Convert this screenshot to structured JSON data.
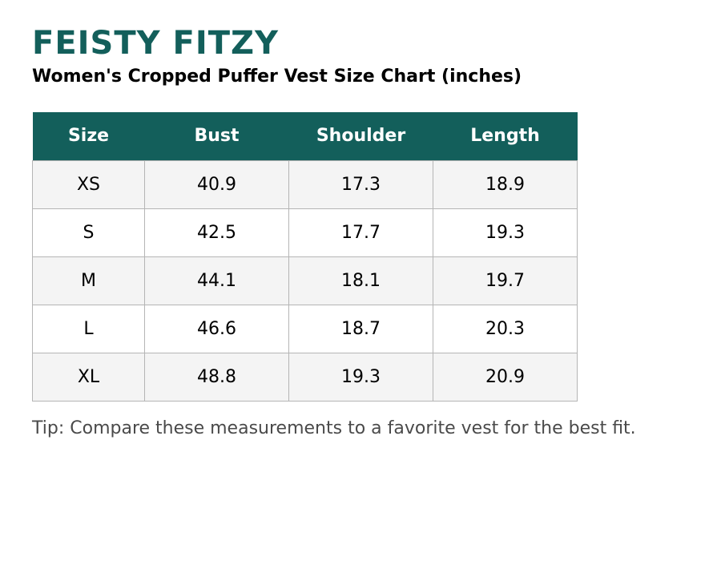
{
  "header": {
    "brand": "FEISTY FITZY",
    "title": "Women's Cropped Puffer Vest Size Chart (inches)"
  },
  "table": {
    "columns": [
      "Size",
      "Bust",
      "Shoulder",
      "Length"
    ],
    "rows": [
      [
        "XS",
        "40.9",
        "17.3",
        "18.9"
      ],
      [
        "S",
        "42.5",
        "17.7",
        "19.3"
      ],
      [
        "M",
        "44.1",
        "18.1",
        "19.7"
      ],
      [
        "L",
        "46.6",
        "18.7",
        "20.3"
      ],
      [
        "XL",
        "48.8",
        "19.3",
        "20.9"
      ]
    ]
  },
  "footer": {
    "tip": "Tip: Compare these measurements to a favorite vest for the best fit."
  }
}
